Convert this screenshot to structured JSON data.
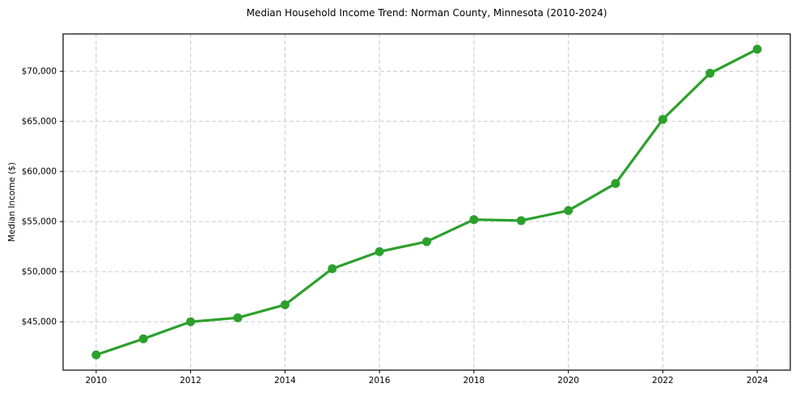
{
  "chart_data": {
    "type": "line",
    "title": "Median Household Income Trend: Norman County, Minnesota (2010-2024)",
    "xlabel": "",
    "ylabel": "Median Income ($)",
    "x": [
      2010,
      2011,
      2012,
      2013,
      2014,
      2015,
      2016,
      2017,
      2018,
      2019,
      2020,
      2021,
      2022,
      2023,
      2024
    ],
    "series": [
      {
        "name": "Median household income",
        "values": [
          41700,
          43300,
          45000,
          45400,
          46700,
          50300,
          52000,
          53000,
          55200,
          55100,
          56100,
          58800,
          65200,
          69800,
          72200
        ]
      }
    ],
    "x_tick_values": [
      2010,
      2012,
      2014,
      2016,
      2018,
      2020,
      2022,
      2024
    ],
    "x_tick_labels": [
      "2010",
      "2012",
      "2014",
      "2016",
      "2018",
      "2020",
      "2022",
      "2024"
    ],
    "y_tick_values": [
      45000,
      50000,
      55000,
      60000,
      65000,
      70000
    ],
    "y_tick_labels": [
      "$45,000",
      "$50,000",
      "$55,000",
      "$60,000",
      "$65,000",
      "$70,000"
    ],
    "xlim": [
      2009.3,
      2024.7
    ],
    "ylim": [
      40175,
      73725
    ],
    "grid": true,
    "grid_style": "dashed",
    "legend_position": "none",
    "line_color": "#2ca02c",
    "marker": "circle",
    "marker_color": "#2ca02c",
    "background_color": "#ffffff",
    "grid_color": "#c9c9c9",
    "spine_color": "#000000",
    "text_color": "#000000"
  }
}
